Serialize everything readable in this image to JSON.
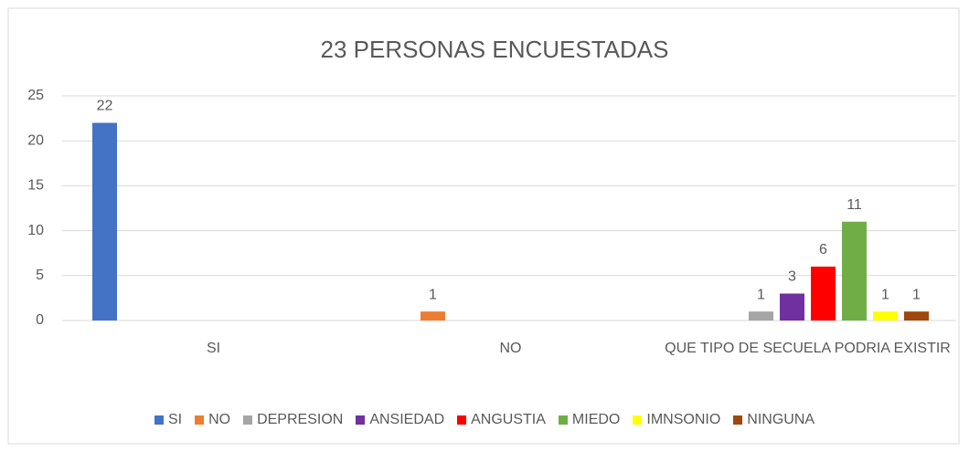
{
  "chart_data": {
    "type": "bar",
    "title": "23 PERSONAS ENCUESTADAS",
    "categories": [
      "SI",
      "NO",
      "QUE TIPO DE SECUELA PODRIA EXISTIR"
    ],
    "series": [
      {
        "name": "SI",
        "color": "#4472c4",
        "values": [
          22,
          null,
          null
        ]
      },
      {
        "name": "NO",
        "color": "#ed7d31",
        "values": [
          null,
          1,
          null
        ]
      },
      {
        "name": "DEPRESION",
        "color": "#a5a5a5",
        "values": [
          null,
          null,
          1
        ]
      },
      {
        "name": "ANSIEDAD",
        "color": "#7030a0",
        "values": [
          null,
          null,
          3
        ]
      },
      {
        "name": "ANGUSTIA",
        "color": "#ff0000",
        "values": [
          null,
          null,
          6
        ]
      },
      {
        "name": "MIEDO",
        "color": "#70ad47",
        "values": [
          null,
          null,
          11
        ]
      },
      {
        "name": "IMNSONIO",
        "color": "#ffff00",
        "values": [
          null,
          null,
          1
        ]
      },
      {
        "name": "NINGUNA",
        "color": "#9e480e",
        "values": [
          null,
          null,
          1
        ]
      }
    ],
    "ylim": [
      0,
      25
    ],
    "yticks": [
      0,
      5,
      10,
      15,
      20,
      25
    ],
    "grid": true,
    "legend": "bottom"
  }
}
